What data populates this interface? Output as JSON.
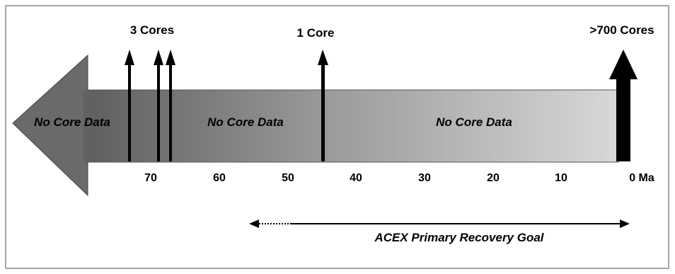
{
  "diagram": {
    "core_labels": {
      "three": "3 Cores",
      "one": "1 Core",
      "many": ">700 Cores"
    },
    "region_labels": [
      "No Core Data",
      "No Core Data",
      "No Core Data"
    ],
    "axis": {
      "ticks": [
        "70",
        "60",
        "50",
        "40",
        "30",
        "20",
        "10",
        "0 Ma"
      ]
    },
    "goal_label": "ACEX Primary Recovery Goal",
    "colors": {
      "arrow_dark": "#5f5f5f",
      "arrow_light": "#d6d6d6",
      "border": "#8a8a8a",
      "ink": "#000000"
    }
  }
}
